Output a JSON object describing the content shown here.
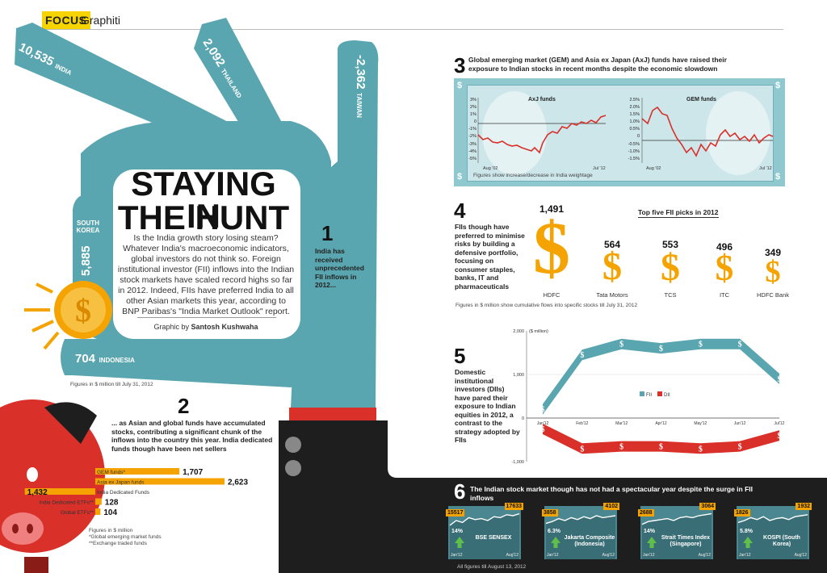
{
  "header": {
    "focus": "FOCUS",
    "section": "Graphiti"
  },
  "hero": {
    "title_line1": "STAYING IN",
    "title_line2": "THE HUNT",
    "intro": "Is the India growth story losing steam? Whatever India's macroeconomic indicators, global investors do not think so. Foreign institutional investor (FII) inflows into the Indian stock markets have scaled record highs so far in 2012. Indeed, FIIs have preferred India to all other Asian markets this year, according to BNP Paribas's \"India Market Outlook\" report.",
    "credit_prefix": "Graphic by",
    "credit_name": "Santosh Kushwaha"
  },
  "hand": {
    "india": {
      "value": "10,535",
      "name": "INDIA"
    },
    "thailand": {
      "value": "2,092",
      "name": "THAILAND"
    },
    "taiwan": {
      "value": "-2,362",
      "name": "TAIWAN"
    },
    "south_korea": {
      "value": "5,885",
      "name_line1": "SOUTH",
      "name_line2": "KOREA"
    },
    "indonesia": {
      "value": "704",
      "name": "INDONESIA"
    },
    "note": "Figures in $ million till July 31, 2012"
  },
  "step1": {
    "num": "1",
    "text": "India has received unprecedented FII inflows in 2012..."
  },
  "step2": {
    "num": "2",
    "text": "... as Asian and global funds have accumulated stocks, contributing a significant chunk of the inflows into the country this year. India dedicated funds though have been net sellers",
    "notes": [
      "Figures in $ million",
      "*Global emerging market funds",
      "**Exchange traded funds"
    ]
  },
  "step3": {
    "num": "3",
    "text": "Global emerging market (GEM) and Asia ex Japan (AxJ) funds have raised their exposure to Indian stocks in recent months despite the economic slowdown",
    "left_title": "AxJ funds",
    "right_title": "GEM funds",
    "left_ticks": [
      "3%",
      "2%",
      "1%",
      "0",
      "-1%",
      "-2%",
      "-3%",
      "-4%",
      "-5%"
    ],
    "right_ticks": [
      "2.5%",
      "2.0%",
      "1.5%",
      "1.0%",
      "0.5%",
      "0",
      "-0.5%",
      "-1.0%",
      "-1.5%"
    ],
    "x_start": "Aug '02",
    "x_end": "Jul '12",
    "note": "Figures show increase/decrease in India weightage"
  },
  "step4": {
    "num": "4",
    "text": "FIIs though have preferred to minimise risks by building a defensive portfolio, focusing on consumer staples, banks, IT and pharmaceuticals",
    "heading": "Top five FII picks in 2012",
    "note": "Figures in $ million show cumulative flows into specific stocks till July 31, 2012"
  },
  "step5": {
    "num": "5",
    "text": "Domestic institutional investors (DIIs) have pared their exposure to Indian equities in 2012, a contrast to the strategy adopted by FIIs",
    "y_label": "($ million)"
  },
  "step6": {
    "num": "6",
    "text": "The Indian stock market though has not had a spectacular year despite the surge in FII inflows",
    "note": "All figures till August 13, 2012",
    "markets": [
      {
        "name": "BSE SENSEX",
        "start": "15517",
        "end": "17633",
        "pct": "14%",
        "x_start": "Jan'12",
        "x_end": "Aug'12"
      },
      {
        "name": "Jakarta Composite (Indonesia)",
        "start": "3858",
        "end": "4102",
        "pct": "6.3%",
        "x_start": "Jan'12",
        "x_end": "Aug'12"
      },
      {
        "name": "Strait Times Index (Singapore)",
        "start": "2688",
        "end": "3064",
        "pct": "14%",
        "x_start": "Jan'12",
        "x_end": "Aug'12"
      },
      {
        "name": "KOSPI (South Korea)",
        "start": "1826",
        "end": "1932",
        "pct": "5.8%",
        "x_start": "Jan'12",
        "x_end": "Aug'12"
      }
    ]
  },
  "colors": {
    "teal": "#5aa6b0",
    "gold": "#f5a300",
    "red": "#d9302a",
    "dark": "#1e1e1e",
    "yellow": "#f5d400"
  },
  "chart_data": [
    {
      "type": "bar",
      "categories": [
        "GEM funds*",
        "Asia ex Japan funds",
        "India Dedicated Funds",
        "India Dedicated ETFs**",
        "Global ETFs**"
      ],
      "values": [
        1707,
        2623,
        -1432,
        128,
        104
      ],
      "value_labels": [
        "1,707",
        "2,623",
        "1,432",
        "128",
        "104"
      ]
    },
    {
      "type": "bar",
      "categories": [
        "HDFC",
        "Tata Motors",
        "TCS",
        "ITC",
        "HDFC Bank"
      ],
      "values": [
        1491,
        564,
        553,
        496,
        349
      ],
      "value_labels": [
        "1,491",
        "564",
        "553",
        "496",
        "349"
      ]
    },
    {
      "type": "line",
      "categories": [
        "Jan'12",
        "Feb'12",
        "Mar'12",
        "Apr'12",
        "May'12",
        "Jun'12",
        "Jul'12"
      ],
      "y_ticks": [
        "2,000",
        "1,000",
        "0",
        "-1,000"
      ],
      "ylim": [
        -1000,
        2000
      ],
      "series": [
        {
          "name": "FII",
          "values": [
            200,
            1450,
            1700,
            1600,
            1700,
            1700,
            900
          ]
        },
        {
          "name": "DII",
          "values": [
            -250,
            -700,
            -650,
            -650,
            -700,
            -650,
            -400
          ]
        }
      ]
    }
  ]
}
